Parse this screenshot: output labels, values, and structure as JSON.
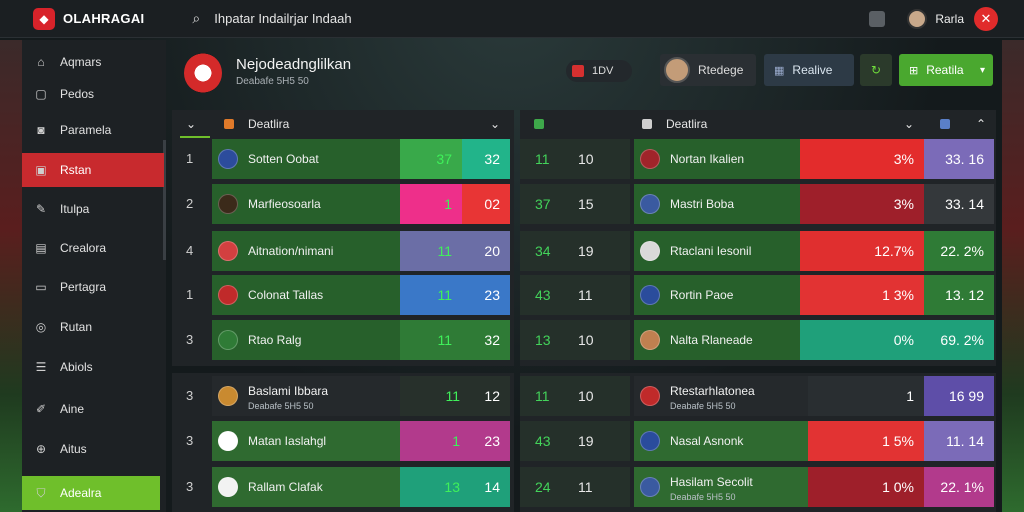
{
  "app": {
    "brand": "OLAHRAGAI",
    "search_text": "Ihpatar Indailrjar Indaah"
  },
  "user": {
    "name": "Rarla"
  },
  "sidebar": {
    "items": [
      {
        "label": "Aqmars",
        "icon": "home-icon"
      },
      {
        "label": "Pedos",
        "icon": "page-icon"
      },
      {
        "label": "Paramela",
        "icon": "chat-icon"
      },
      {
        "label": "Rstan",
        "icon": "calendar-icon",
        "active": true
      },
      {
        "label": "Itulpa",
        "icon": "edit-icon"
      },
      {
        "label": "Crealora",
        "icon": "document-icon"
      },
      {
        "label": "Pertagra",
        "icon": "folder-icon"
      },
      {
        "label": "Rutan",
        "icon": "target-icon"
      },
      {
        "label": "Abiols",
        "icon": "list-icon"
      },
      {
        "label": "Aine",
        "icon": "pen-icon"
      },
      {
        "label": "Aitus",
        "icon": "globe-icon"
      },
      {
        "label": "Adealra",
        "icon": "shield-icon",
        "highlight": true
      }
    ]
  },
  "header": {
    "title": "Nejodeadnglilkan",
    "subtitle": "Deabafe 5H5 50",
    "tv_label": "1DV",
    "btn_profile": "Rtedege",
    "btn_realive": "Realive",
    "btn_green": "Reatila"
  },
  "left_table": {
    "header": "Deatlira",
    "rows": [
      {
        "rank": "1",
        "team": "Sotten Oobat",
        "v1": "37",
        "v2": "32",
        "c1": "#39a94a",
        "c2": "#22b48a"
      },
      {
        "rank": "2",
        "team": "Marfieosoarla",
        "v1": "1",
        "v2": "02",
        "c1": "#ee2f8a",
        "c2": "#e83535"
      },
      {
        "rank": "4",
        "team": "Aitnation/nimani",
        "v1": "11",
        "v2": "20",
        "c1": "#6b6ea6",
        "c2": "#6b6ea6"
      },
      {
        "rank": "1",
        "team": "Colonat Tallas",
        "v1": "11",
        "v2": "23",
        "c1": "#3a78c8",
        "c2": "#3a78c8"
      },
      {
        "rank": "3",
        "team": "Rtao Ralg",
        "v1": "11",
        "v2": "32",
        "c1": "#2f7b36",
        "c2": "#2f7b36"
      }
    ]
  },
  "right_table": {
    "header": "Deatlira",
    "rows": [
      {
        "a": "11",
        "b": "10",
        "team": "Nortan Ikalien",
        "pct": "3%",
        "v": "33. 16",
        "c1": "#e32c2c",
        "c2": "#7b6bb8"
      },
      {
        "a": "37",
        "b": "15",
        "team": "Mastri Boba",
        "pct": "3%",
        "v": "33. 14",
        "c1": "#9e1f2a",
        "c2": "#34383b"
      },
      {
        "a": "34",
        "b": "19",
        "team": "Rtaclani Iesonil",
        "pct": "12.7%",
        "v": "22. 2%",
        "c1": "#e02f2f",
        "c2": "#2f7b36"
      },
      {
        "a": "43",
        "b": "11",
        "team": "Rortin Paoe",
        "pct": "1 3%",
        "v": "13. 12",
        "c1": "#e23333",
        "c2": "#2f7b36"
      },
      {
        "a": "13",
        "b": "10",
        "team": "Nalta Rlaneade",
        "pct": "0%",
        "v": "69. 2%",
        "c1": "#1fa07a",
        "c2": "#1fa07a"
      }
    ]
  },
  "left_table2": {
    "rows": [
      {
        "rank": "3",
        "team": "Baslami Ibbara",
        "sub": "Deabafe 5H5 50",
        "v1": "11",
        "v2": "12",
        "c1": "#27302b",
        "c2": "#27302b"
      },
      {
        "rank": "3",
        "team": "Matan Iaslahgl",
        "sub": "",
        "v1": "1",
        "v2": "23",
        "c1": "#b23a8c",
        "c2": "#b23a8c"
      },
      {
        "rank": "3",
        "team": "Rallam Clafak",
        "sub": "",
        "v1": "13",
        "v2": "14",
        "c1": "#1fa07a",
        "c2": "#1fa07a"
      }
    ]
  },
  "right_table2": {
    "rows": [
      {
        "a": "11",
        "b": "10",
        "team": "Rtestarhlatonea",
        "sub": "Deabafe 5H5 50",
        "pct": "1",
        "v": "16 99",
        "c1": "#292e31",
        "c2": "#5e4ea8"
      },
      {
        "a": "43",
        "b": "19",
        "team": "Nasal Asnonk",
        "sub": "",
        "pct": "1 5%",
        "v": "11. 14",
        "c1": "#e23333",
        "c2": "#7b6bb8"
      },
      {
        "a": "24",
        "b": "11",
        "team": "Hasilam Secolit",
        "sub": "Deabafe 5H5 50",
        "pct": "1 0%",
        "v": "22. 1%",
        "c1": "#9e1f2a",
        "c2": "#b23a8c"
      }
    ]
  }
}
